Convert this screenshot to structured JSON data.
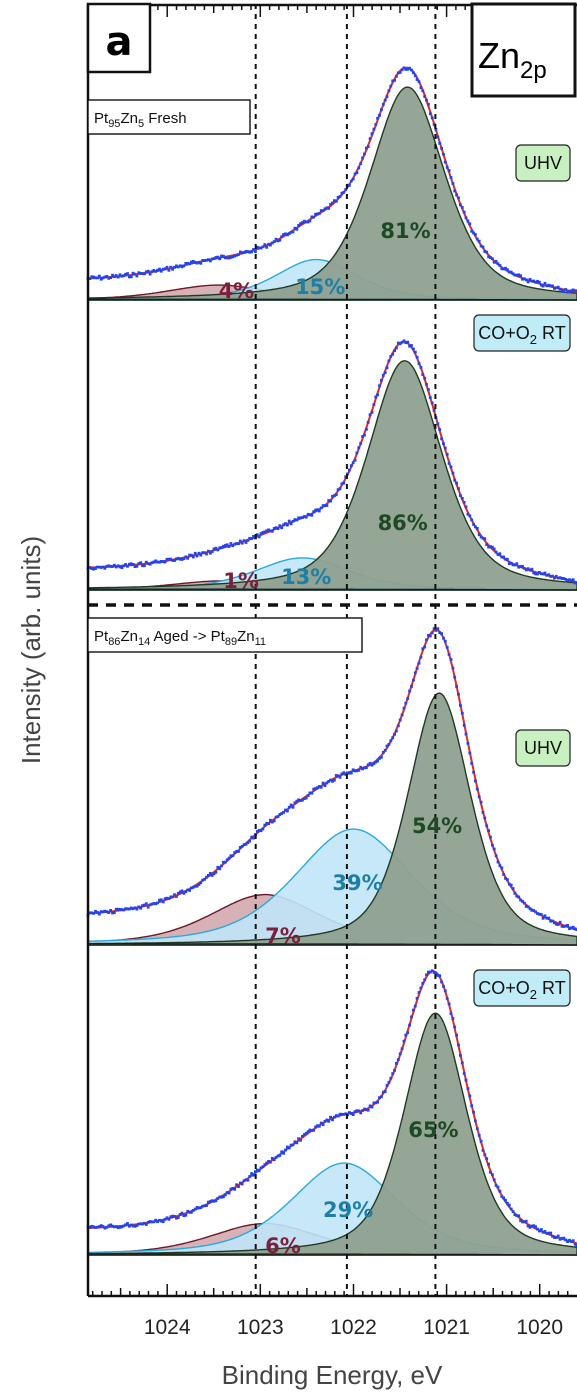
{
  "chart_data": {
    "type": "line",
    "panel_letter": "a",
    "element_label": "Zn",
    "element_subscript": "2p",
    "xlabel": "Binding Energy, eV",
    "ylabel": "Intensity (arb. units)",
    "xlim": [
      1024.85,
      1019.6
    ],
    "xticks": [
      1024,
      1023,
      1022,
      1021,
      1020
    ],
    "reference_lines": [
      1023.05,
      1022.07,
      1021.12
    ],
    "colors": {
      "component_1": "#8fa090",
      "component_2": "#c0e6f8",
      "component_3": "#d4a8ae",
      "envelope": "#e02828",
      "data": "#2244ee"
    },
    "groups": [
      {
        "sample_prefix": "Pt",
        "sample_sub1": "95",
        "sample_mid": "Zn",
        "sample_sub2": "5",
        "sample_suffix": " Fresh"
      },
      {
        "sample_prefix": "Pt",
        "sample_sub1": "86",
        "sample_mid": "Zn",
        "sample_sub2": "14",
        "sample_suffix": " Aged -> Pt",
        "sample_sub3": "89",
        "sample_end": "Zn",
        "sample_sub4": "11"
      }
    ],
    "spectra": [
      {
        "condition": "UHV",
        "condition_color": "#c8f0c0",
        "components": [
          {
            "center": 1021.42,
            "fwhm": 0.95,
            "percent": "81%"
          },
          {
            "center": 1022.4,
            "fwhm": 1.05,
            "percent": "15%"
          },
          {
            "center": 1023.45,
            "fwhm": 1.3,
            "percent": "4%"
          }
        ]
      },
      {
        "condition": "CO+O",
        "condition_sub": "2",
        "condition_suffix": " RT",
        "condition_color": "#c0ecf8",
        "components": [
          {
            "center": 1021.45,
            "fwhm": 0.95,
            "percent": "86%"
          },
          {
            "center": 1022.55,
            "fwhm": 1.2,
            "percent": "13%"
          },
          {
            "center": 1023.4,
            "fwhm": 1.3,
            "percent": "1%"
          }
        ]
      },
      {
        "condition": "UHV",
        "condition_color": "#c8f0c0",
        "components": [
          {
            "center": 1021.08,
            "fwhm": 0.8,
            "percent": "54%"
          },
          {
            "center": 1022.0,
            "fwhm": 1.5,
            "percent": "39%"
          },
          {
            "center": 1022.95,
            "fwhm": 1.4,
            "percent": "7%"
          }
        ]
      },
      {
        "condition": "CO+O",
        "condition_sub": "2",
        "condition_suffix": " RT",
        "condition_color": "#c0ecf8",
        "components": [
          {
            "center": 1021.12,
            "fwhm": 0.8,
            "percent": "65%"
          },
          {
            "center": 1022.1,
            "fwhm": 1.35,
            "percent": "29%"
          },
          {
            "center": 1022.95,
            "fwhm": 1.4,
            "percent": "6%"
          }
        ]
      }
    ]
  }
}
